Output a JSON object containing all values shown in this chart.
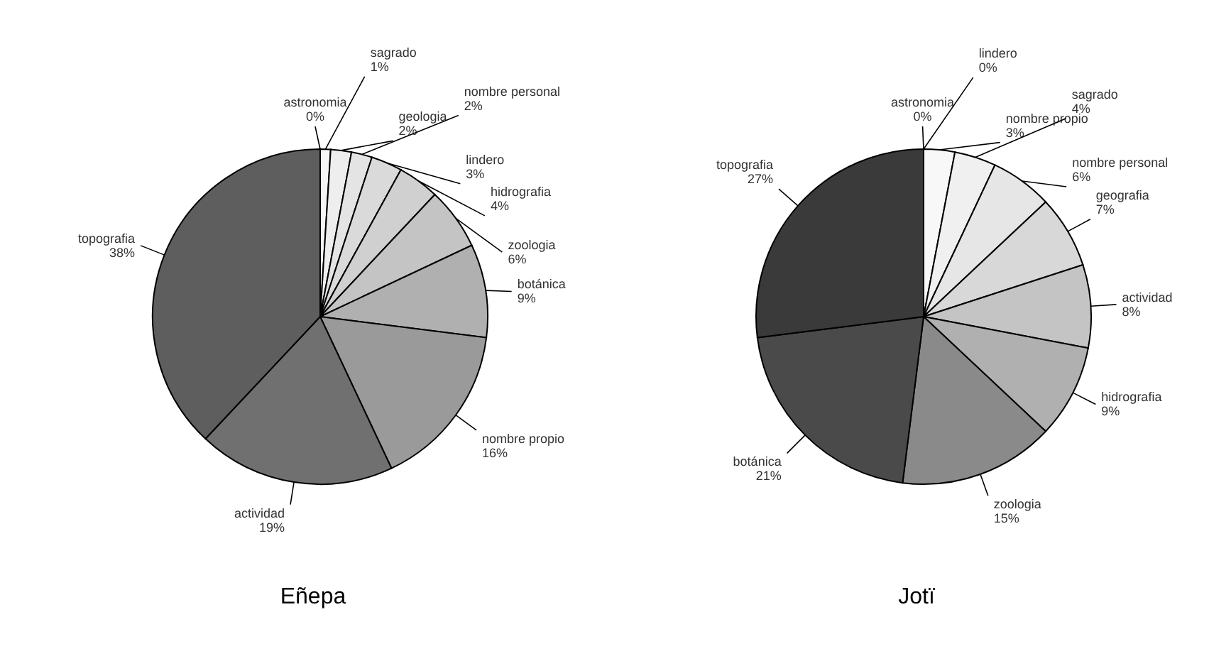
{
  "chart_data": [
    {
      "type": "pie",
      "title": "Eñepa",
      "categories": [
        "astronomia",
        "sagrado",
        "geologia",
        "nombre personal",
        "lindero",
        "hidrografia",
        "zoologia",
        "botánica",
        "nombre propio",
        "actividad",
        "topografia"
      ],
      "values": [
        0,
        1,
        2,
        2,
        3,
        4,
        6,
        9,
        16,
        19,
        38
      ],
      "value_labels": [
        "0%",
        "1%",
        "2%",
        "2%",
        "3%",
        "4%",
        "6%",
        "9%",
        "16%",
        "19%",
        "38%"
      ],
      "colors": [
        "#ffffff",
        "#f6f6f6",
        "#eeeeee",
        "#e4e4e4",
        "#dadada",
        "#d0d0d0",
        "#c4c4c4",
        "#b0b0b0",
        "#9a9a9a",
        "#707070",
        "#5e5e5e"
      ]
    },
    {
      "type": "pie",
      "title": "Jotï",
      "categories": [
        "astronomia",
        "lindero",
        "nombre propio",
        "sagrado",
        "nombre personal",
        "geografia",
        "actividad",
        "hidrografia",
        "zoologia",
        "botánica",
        "topografia"
      ],
      "values": [
        0,
        0,
        3,
        4,
        6,
        7,
        8,
        9,
        15,
        21,
        27
      ],
      "value_labels": [
        "0%",
        "0%",
        "3%",
        "4%",
        "6%",
        "7%",
        "8%",
        "9%",
        "15%",
        "21%",
        "27%"
      ],
      "colors": [
        "#ffffff",
        "#ffffff",
        "#f8f8f8",
        "#f0f0f0",
        "#e6e6e6",
        "#d8d8d8",
        "#c4c4c4",
        "#b0b0b0",
        "#8a8a8a",
        "#4a4a4a",
        "#3a3a3a"
      ]
    }
  ]
}
